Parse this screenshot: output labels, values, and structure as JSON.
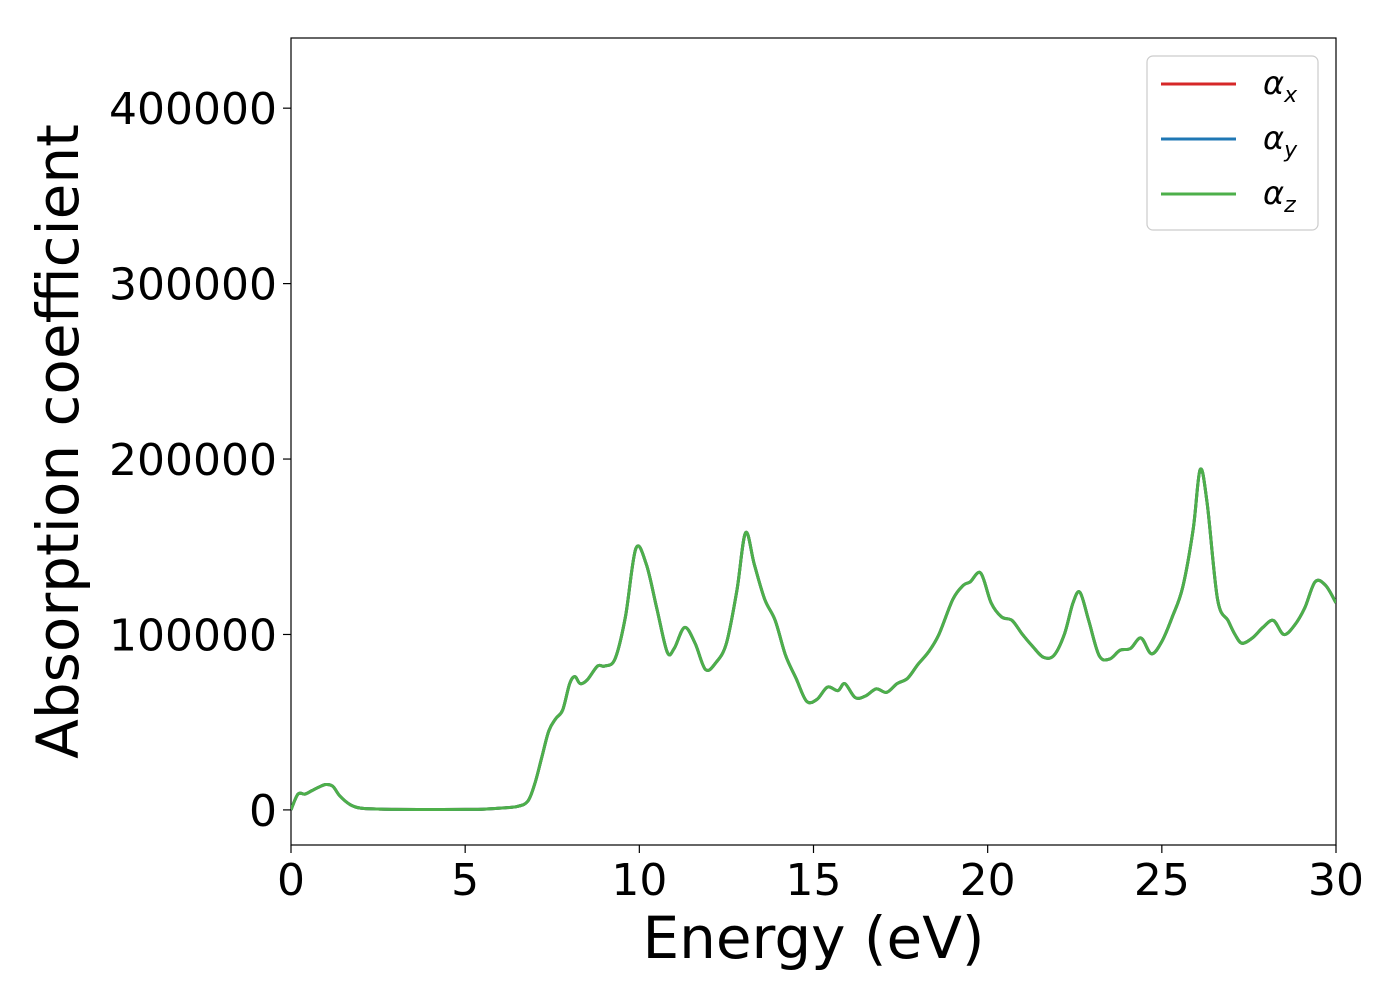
{
  "chart_data": {
    "type": "line",
    "xlabel": "Energy (eV)",
    "ylabel": "Absorption coefficient",
    "xlim": [
      0,
      30
    ],
    "ylim": [
      -20000,
      440000
    ],
    "xticks": [
      0,
      5,
      10,
      15,
      20,
      25,
      30
    ],
    "yticks": [
      0,
      100000,
      200000,
      300000,
      400000
    ],
    "grid": false,
    "legend_position": "top-right",
    "x": [
      0,
      0.2,
      0.4,
      0.6,
      0.8,
      1.0,
      1.2,
      1.4,
      1.7,
      2.0,
      2.5,
      3,
      4,
      5,
      5.5,
      6,
      6.5,
      6.8,
      7.0,
      7.2,
      7.4,
      7.6,
      7.8,
      8.0,
      8.15,
      8.3,
      8.5,
      8.8,
      9.0,
      9.3,
      9.6,
      9.9,
      10.2,
      10.5,
      10.8,
      11.0,
      11.3,
      11.6,
      11.9,
      12.2,
      12.5,
      12.8,
      13.05,
      13.3,
      13.6,
      13.9,
      14.2,
      14.5,
      14.8,
      15.1,
      15.4,
      15.7,
      15.9,
      16.2,
      16.5,
      16.8,
      17.1,
      17.4,
      17.7,
      18.0,
      18.3,
      18.6,
      19.0,
      19.3,
      19.5,
      19.8,
      20.1,
      20.4,
      20.7,
      21.0,
      21.3,
      21.6,
      21.9,
      22.2,
      22.45,
      22.65,
      22.9,
      23.2,
      23.5,
      23.8,
      24.1,
      24.4,
      24.7,
      25.0,
      25.3,
      25.6,
      25.9,
      26.1,
      26.3,
      26.6,
      26.9,
      27.1,
      27.3,
      27.6,
      27.9,
      28.2,
      28.5,
      28.8,
      29.1,
      29.4,
      29.7,
      30.0
    ],
    "series": [
      {
        "name": "α_x",
        "color": "#d62728",
        "values": [
          0,
          9000,
          9000,
          11000,
          13000,
          14500,
          13500,
          8000,
          3000,
          1000,
          500,
          300,
          200,
          300,
          400,
          1000,
          2000,
          5000,
          15000,
          30000,
          45000,
          52000,
          57000,
          72000,
          76000,
          72000,
          74000,
          82000,
          82000,
          86000,
          110000,
          149000,
          140000,
          115000,
          90000,
          92000,
          104000,
          95000,
          80000,
          84000,
          95000,
          125000,
          158000,
          140000,
          120000,
          108000,
          88000,
          75000,
          62000,
          63000,
          70000,
          68000,
          72000,
          64000,
          65000,
          69000,
          67000,
          72000,
          75000,
          83000,
          90000,
          100000,
          120000,
          128000,
          130000,
          135000,
          118000,
          110000,
          108000,
          100000,
          93000,
          87000,
          88000,
          100000,
          118000,
          124000,
          108000,
          88000,
          86000,
          91000,
          92000,
          98000,
          89000,
          96000,
          110000,
          127000,
          160000,
          194000,
          175000,
          120000,
          108000,
          100000,
          95000,
          98000,
          104000,
          108000,
          100000,
          105000,
          115000,
          130000,
          128000,
          118000
        ]
      },
      {
        "name": "α_y",
        "color": "#1f77b4",
        "values": [
          0,
          9000,
          9000,
          11000,
          13000,
          14500,
          13500,
          8000,
          3000,
          1000,
          500,
          300,
          200,
          300,
          400,
          1000,
          2000,
          5000,
          15000,
          30000,
          45000,
          52000,
          57000,
          72000,
          76000,
          72000,
          74000,
          82000,
          82000,
          86000,
          110000,
          149000,
          140000,
          115000,
          90000,
          92000,
          104000,
          95000,
          80000,
          84000,
          95000,
          125000,
          158000,
          140000,
          120000,
          108000,
          88000,
          75000,
          62000,
          63000,
          70000,
          68000,
          72000,
          64000,
          65000,
          69000,
          67000,
          72000,
          75000,
          83000,
          90000,
          100000,
          120000,
          128000,
          130000,
          135000,
          118000,
          110000,
          108000,
          100000,
          93000,
          87000,
          88000,
          100000,
          118000,
          124000,
          108000,
          88000,
          86000,
          91000,
          92000,
          98000,
          89000,
          96000,
          110000,
          127000,
          160000,
          194000,
          175000,
          120000,
          108000,
          100000,
          95000,
          98000,
          104000,
          108000,
          100000,
          105000,
          115000,
          130000,
          128000,
          118000
        ]
      },
      {
        "name": "α_z",
        "color": "#4daf4a",
        "values": [
          0,
          9000,
          9000,
          11000,
          13000,
          14500,
          13500,
          8000,
          3000,
          1000,
          500,
          300,
          200,
          300,
          400,
          1000,
          2000,
          5000,
          15000,
          30000,
          45000,
          52000,
          57000,
          72000,
          76000,
          72000,
          74000,
          82000,
          82000,
          86000,
          110000,
          149000,
          140000,
          115000,
          90000,
          92000,
          104000,
          95000,
          80000,
          84000,
          95000,
          125000,
          158000,
          140000,
          120000,
          108000,
          88000,
          75000,
          62000,
          63000,
          70000,
          68000,
          72000,
          64000,
          65000,
          69000,
          67000,
          72000,
          75000,
          83000,
          90000,
          100000,
          120000,
          128000,
          130000,
          135000,
          118000,
          110000,
          108000,
          100000,
          93000,
          87000,
          88000,
          100000,
          118000,
          124000,
          108000,
          88000,
          86000,
          91000,
          92000,
          98000,
          89000,
          96000,
          110000,
          127000,
          160000,
          194000,
          175000,
          120000,
          108000,
          100000,
          95000,
          98000,
          104000,
          108000,
          100000,
          105000,
          115000,
          130000,
          128000,
          118000
        ]
      }
    ],
    "legend": [
      {
        "symbol": "α",
        "sub": "x",
        "color": "#d62728"
      },
      {
        "symbol": "α",
        "sub": "y",
        "color": "#1f77b4"
      },
      {
        "symbol": "α",
        "sub": "z",
        "color": "#4daf4a"
      }
    ]
  }
}
